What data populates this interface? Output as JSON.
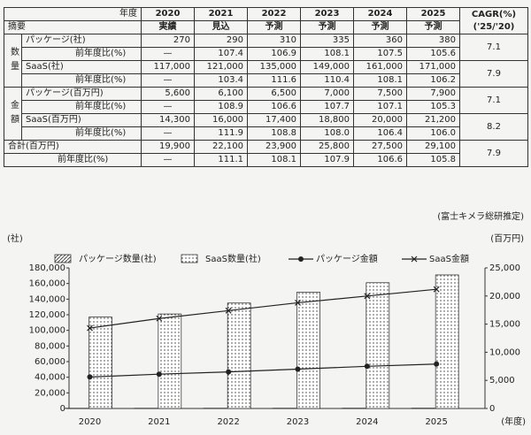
{
  "table": {
    "corner_top": "年度",
    "corner_bottom": "摘要",
    "columns": [
      {
        "year": "2020",
        "status": "実績"
      },
      {
        "year": "2021",
        "status": "見込"
      },
      {
        "year": "2022",
        "status": "予測"
      },
      {
        "year": "2023",
        "status": "予測"
      },
      {
        "year": "2024",
        "status": "予測"
      },
      {
        "year": "2025",
        "status": "予測"
      }
    ],
    "cagr_header": [
      "CAGR(%)",
      "('25/'20)"
    ],
    "groups": [
      {
        "label": "数量",
        "items": [
          {
            "label": "パッケージ(社)",
            "values": [
              "270",
              "290",
              "310",
              "335",
              "360",
              "380"
            ],
            "yoy_label": "前年度比(%)",
            "yoy": [
              "—",
              "107.4",
              "106.9",
              "108.1",
              "107.5",
              "105.6"
            ],
            "cagr": "7.1"
          },
          {
            "label": "SaaS(社)",
            "values": [
              "117,000",
              "121,000",
              "135,000",
              "149,000",
              "161,000",
              "171,000"
            ],
            "yoy_label": "前年度比(%)",
            "yoy": [
              "—",
              "103.4",
              "111.6",
              "110.4",
              "108.1",
              "106.2"
            ],
            "cagr": "7.9"
          }
        ]
      },
      {
        "label": "金額",
        "items": [
          {
            "label": "パッケージ(百万円)",
            "values": [
              "5,600",
              "6,100",
              "6,500",
              "7,000",
              "7,500",
              "7,900"
            ],
            "yoy_label": "前年度比(%)",
            "yoy": [
              "—",
              "108.9",
              "106.6",
              "107.7",
              "107.1",
              "105.3"
            ],
            "cagr": "7.1"
          },
          {
            "label": "SaaS(百万円)",
            "values": [
              "14,300",
              "16,000",
              "17,400",
              "18,800",
              "20,000",
              "21,200"
            ],
            "yoy_label": "前年度比(%)",
            "yoy": [
              "—",
              "111.9",
              "108.8",
              "108.0",
              "106.4",
              "106.0"
            ],
            "cagr": "8.2"
          }
        ]
      }
    ],
    "total": {
      "label": "合計(百万円)",
      "values": [
        "19,900",
        "22,100",
        "23,900",
        "25,800",
        "27,500",
        "29,100"
      ],
      "yoy_label": "前年度比(%)",
      "yoy": [
        "—",
        "111.1",
        "108.1",
        "107.9",
        "106.6",
        "105.8"
      ],
      "cagr": "7.9"
    },
    "note": "(富士キメラ総研推定)"
  },
  "chart_data": {
    "type": "combo",
    "y_unit": "(社)",
    "y2_unit": "(百万円)",
    "x_unit": "(年度)",
    "categories": [
      "2020",
      "2021",
      "2022",
      "2023",
      "2024",
      "2025"
    ],
    "series": [
      {
        "name": "パッケージ数量(社)",
        "type": "bar",
        "color": "#222",
        "values": [
          270,
          290,
          310,
          335,
          360,
          380
        ]
      },
      {
        "name": "SaaS数量(社)",
        "type": "bar",
        "color": "#222",
        "values": [
          117000,
          121000,
          135000,
          149000,
          161000,
          171000
        ]
      },
      {
        "name": "パッケージ金額",
        "type": "line",
        "marker": "circle",
        "color": "#222",
        "axis": "y2",
        "values": [
          5600,
          6100,
          6500,
          7000,
          7500,
          7900
        ]
      },
      {
        "name": "SaaS金額",
        "type": "line",
        "marker": "x",
        "color": "#222",
        "axis": "y2",
        "values": [
          14300,
          16000,
          17400,
          18800,
          20000,
          21200
        ]
      }
    ],
    "ylim": [
      0,
      180000
    ],
    "yticks": [
      0,
      {
        "value": 20000,
        "label": "20,000"
      },
      {
        "value": 40000,
        "label": "40,000"
      },
      {
        "value": 60000,
        "label": "60,000"
      },
      {
        "value": 80000,
        "label": "80,000"
      },
      {
        "value": 100000,
        "label": "100,000"
      },
      {
        "value": 120000,
        "label": "120,000"
      },
      {
        "value": 140000,
        "label": "140,000"
      },
      {
        "value": 160000,
        "label": "160,000"
      },
      {
        "value": 180000,
        "label": "180,000"
      }
    ],
    "y2lim": [
      0,
      25000
    ],
    "y2ticks": [
      0,
      {
        "value": 5000,
        "label": "5,000"
      },
      {
        "value": 10000,
        "label": "10,000"
      },
      {
        "value": 15000,
        "label": "15,000"
      },
      {
        "value": 20000,
        "label": "20,000"
      },
      {
        "value": 25000,
        "label": "25,000"
      }
    ]
  }
}
